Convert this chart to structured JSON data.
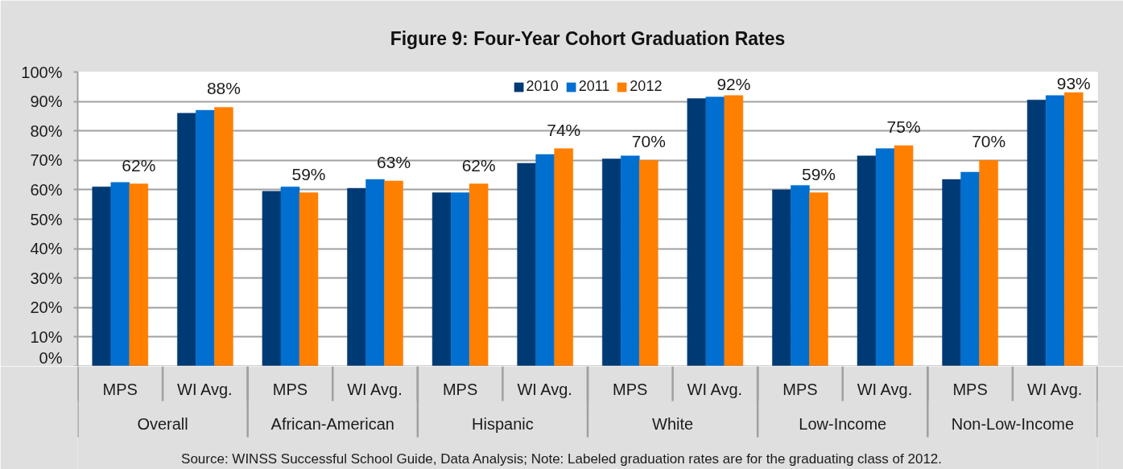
{
  "chart_data": {
    "type": "bar",
    "title": "Figure 9: Four-Year Cohort Graduation Rates",
    "categories": [
      "MPS",
      "WI Avg.",
      "MPS",
      "WI Avg.",
      "MPS",
      "WI Avg.",
      "MPS",
      "WI Avg.",
      "MPS",
      "WI Avg.",
      "MPS",
      "WI Avg."
    ],
    "series": [
      {
        "name": "2010",
        "color": "#003a75",
        "values": [
          61,
          86,
          59.5,
          60.5,
          59,
          69,
          70.5,
          91,
          60,
          71.5,
          63.5,
          90.5
        ]
      },
      {
        "name": "2011",
        "color": "#006fd0",
        "values": [
          62.5,
          87,
          61,
          63.5,
          59,
          72,
          71.5,
          91.5,
          61.5,
          74,
          66,
          92
        ]
      },
      {
        "name": "2012",
        "color": "#ff7f00",
        "values": [
          62,
          88,
          59,
          63,
          62,
          74,
          70,
          92,
          59,
          75,
          70,
          93
        ],
        "value_labels": [
          "62%",
          "88%",
          "59%",
          "63%",
          "62%",
          "74%",
          "70%",
          "92%",
          "59%",
          "75%",
          "70%",
          "93%"
        ]
      }
    ],
    "ylim": [
      0,
      100
    ],
    "yticks": [
      {
        "value": 0,
        "label": "0%"
      },
      {
        "value": 10,
        "label": "10%"
      },
      {
        "value": 20,
        "label": "20%"
      },
      {
        "value": 30,
        "label": "30%"
      },
      {
        "value": 40,
        "label": "40%"
      },
      {
        "value": 50,
        "label": "50%"
      },
      {
        "value": 60,
        "label": "60%"
      },
      {
        "value": 70,
        "label": "70%"
      },
      {
        "value": 80,
        "label": "80%"
      },
      {
        "value": 90,
        "label": "90%"
      },
      {
        "value": 100,
        "label": "100%"
      }
    ],
    "grid": "y",
    "legend": "top",
    "annotations": [
      "Overall",
      "African-American",
      "Hispanic",
      "White",
      "Low-Income",
      "Non-Low-Income",
      "Source: WINSS Successful School Guide, Data Analysis; Note: Labeled graduation rates are for the graduating class of 2012."
    ]
  }
}
